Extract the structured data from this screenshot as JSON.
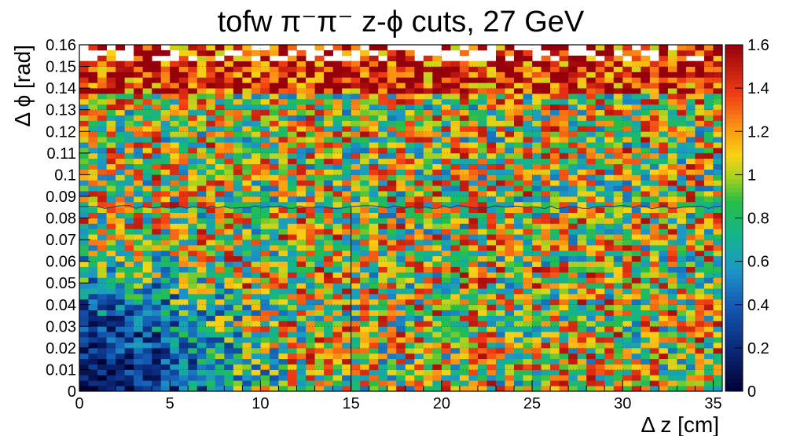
{
  "chart_data": {
    "type": "heatmap",
    "title": "tofw π⁻π⁻  z-ϕ cuts, 27 GeV",
    "xlabel": "Δ z [cm]",
    "ylabel": "Δ ϕ [rad]",
    "xlim": [
      0,
      35.5
    ],
    "ylim": [
      0,
      0.16
    ],
    "x_ticks": [
      "0",
      "5",
      "10",
      "15",
      "20",
      "25",
      "30",
      "35"
    ],
    "y_ticks": [
      "0",
      "0.01",
      "0.02",
      "0.03",
      "0.04",
      "0.05",
      "0.06",
      "0.07",
      "0.08",
      "0.09",
      "0.1",
      "0.11",
      "0.12",
      "0.13",
      "0.14",
      "0.15",
      "0.16"
    ],
    "z_range": [
      0,
      1.6
    ],
    "z_ticks": [
      "0",
      "0.2",
      "0.4",
      "0.6",
      "0.8",
      "1",
      "1.2",
      "1.4",
      "1.6"
    ],
    "bins": {
      "nx": 71,
      "ny": 64
    },
    "grid": true,
    "cut_line_x": 15,
    "contour_level_y": 0.085,
    "description_of_values": "ratio near 0.1-0.3 at small Δz, Δϕ; rises to ~1 with fluctuations 0.6-1.6 elsewhere; saturated (>1.6) near Δϕ 0.14-0.155"
  }
}
